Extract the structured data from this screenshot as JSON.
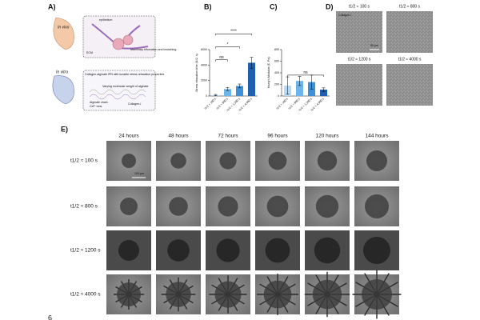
{
  "panel_a": {
    "label": "A)",
    "in_vivo": "In vivo",
    "in_vitro": "In vitro",
    "epithelium": "epithelium",
    "branching": "Mammary bifurcation and branching",
    "ecm": "ECM",
    "ipn": "Collagen-alginate IPN with tunable stress relaxation properties",
    "mw": "Varying molecular weight of alginate",
    "alginate": "Alginate chain",
    "ions": "Ca²⁺ ions",
    "collagen": "Collagen-I"
  },
  "chart_data": [
    {
      "type": "bar",
      "label": "B)",
      "ylabel": "Stress relaxation time (t1/2, s)",
      "categories": [
        "t1/2 ≈ 100 s",
        "t1/2 ≈ 800 s",
        "t1/2 ≈ 1,200 s",
        "t1/2 ≈ 4,000 s"
      ],
      "values": [
        120,
        900,
        1300,
        4300
      ],
      "errors": [
        80,
        200,
        250,
        700
      ],
      "colors": [
        "#b8d9f2",
        "#6db4ea",
        "#3d8fd8",
        "#1f5fae"
      ],
      "ylim": [
        0,
        6000
      ],
      "yticks": [
        0,
        2000,
        4000,
        6000
      ],
      "significance": [
        "ns",
        "*",
        "****"
      ]
    },
    {
      "type": "bar",
      "label": "C)",
      "ylabel": "Young's Modulus (E, Pa)",
      "categories": [
        "t1/2 ≈ 100 s",
        "t1/2 ≈ 800 s",
        "t1/2 ≈ 1,200 s",
        "t1/2 ≈ 4,000 s"
      ],
      "values": [
        180,
        260,
        240,
        110
      ],
      "errors": [
        150,
        80,
        120,
        30
      ],
      "colors": [
        "#b8d9f2",
        "#6db4ea",
        "#3d8fd8",
        "#1f5fae"
      ],
      "ylim": [
        0,
        800
      ],
      "yticks": [
        0,
        200,
        400,
        600,
        800
      ],
      "significance": [
        "ns"
      ]
    }
  ],
  "panel_d": {
    "label": "D)",
    "stain": "Collagen I",
    "scale": "50 µm",
    "titles": [
      "t1/2 ≈ 100 s",
      "t1/2 ≈ 800 s",
      "t1/2 ≈ 1200 s",
      "t1/2 ≈ 4000 s"
    ]
  },
  "panel_e": {
    "label": "E)",
    "columns": [
      "24 hours",
      "48 hours",
      "72 hours",
      "96 hours",
      "120 hours",
      "144 hours"
    ],
    "rows": [
      "t1/2 ≈ 100 s",
      "t1/2 ≈ 800 s",
      "t1/2 ≈ 1200 s",
      "t1/2 ≈ 4000 s"
    ],
    "scale": "100 µm"
  },
  "page_number": "6"
}
